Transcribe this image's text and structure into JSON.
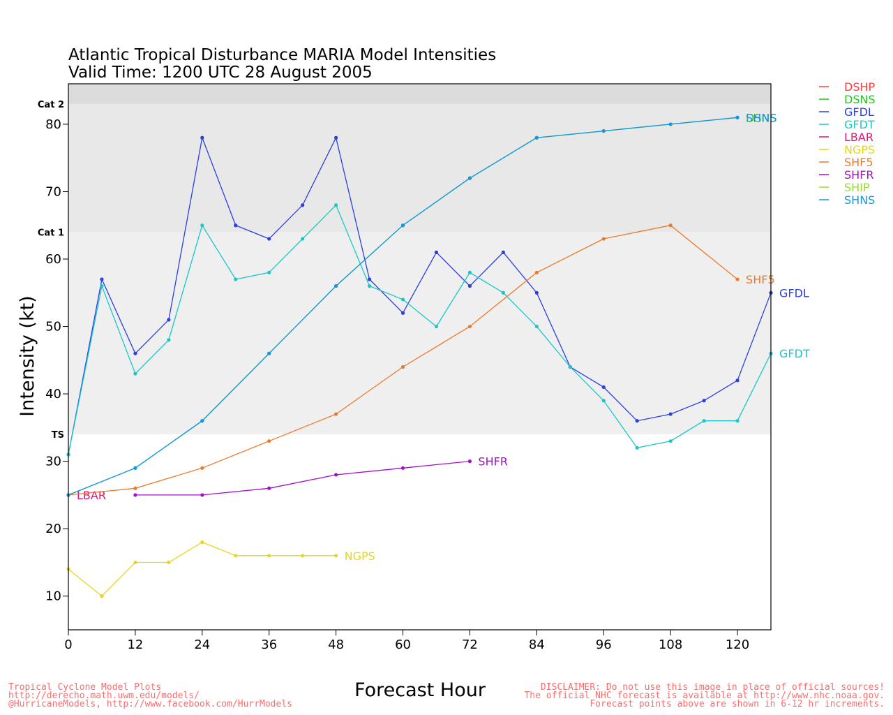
{
  "chart_data": {
    "type": "line",
    "title": "Atlantic Tropical Disturbance MARIA Model Intensities",
    "subtitle": "Valid Time: 1200 UTC 28 August 2005",
    "xlabel": "Forecast Hour",
    "ylabel": "Intensity (kt)",
    "xlim": [
      0,
      126
    ],
    "ylim": [
      5,
      86
    ],
    "x_ticks": [
      0,
      12,
      24,
      36,
      48,
      60,
      72,
      84,
      96,
      108,
      120
    ],
    "y_ticks": [
      10,
      20,
      30,
      40,
      50,
      60,
      70,
      80
    ],
    "bands": [
      {
        "label": "TS",
        "from": 34,
        "to": 64,
        "color": "#efefef"
      },
      {
        "label": "Cat 1",
        "from": 64,
        "to": 83,
        "color": "#e8e8e8"
      },
      {
        "label": "Cat 2",
        "from": 83,
        "to": 96,
        "color": "#dcdcdc"
      }
    ],
    "legend_position": "right, outside plot",
    "series": [
      {
        "name": "DSHP",
        "color": "#ff3a3a",
        "x": [],
        "y": [],
        "end_label": ""
      },
      {
        "name": "DSNS",
        "color": "#1ec81e",
        "x": [
          0,
          12,
          24,
          36,
          48,
          60,
          72,
          84,
          96,
          108,
          120
        ],
        "y": [
          25,
          29,
          36,
          46,
          56,
          65,
          72,
          78,
          79,
          80,
          81
        ],
        "end_label": "DSNS"
      },
      {
        "name": "GFDL",
        "color": "#2a3fe0",
        "x": [
          0,
          6,
          12,
          18,
          24,
          30,
          36,
          42,
          48,
          54,
          60,
          66,
          72,
          78,
          84,
          90,
          96,
          102,
          108,
          114,
          120,
          126
        ],
        "y": [
          31,
          57,
          46,
          51,
          78,
          65,
          63,
          68,
          78,
          57,
          52,
          61,
          56,
          61,
          55,
          44,
          41,
          36,
          37,
          39,
          42,
          55
        ],
        "end_label": "GFDL"
      },
      {
        "name": "GFDT",
        "color": "#18c8c8",
        "x": [
          0,
          6,
          12,
          18,
          24,
          30,
          36,
          42,
          48,
          54,
          60,
          66,
          72,
          78,
          84,
          90,
          96,
          102,
          108,
          114,
          120,
          126
        ],
        "y": [
          31,
          56,
          43,
          48,
          65,
          57,
          58,
          63,
          68,
          56,
          54,
          50,
          58,
          55,
          50,
          44,
          39,
          32,
          33,
          36,
          36,
          46
        ],
        "end_label": "GFDT"
      },
      {
        "name": "LBAR",
        "color": "#e0147a",
        "x": [
          0
        ],
        "y": [
          25
        ],
        "end_label": "LBAR"
      },
      {
        "name": "NGPS",
        "color": "#e6d620",
        "x": [
          0,
          6,
          12,
          18,
          24,
          30,
          36,
          42,
          48
        ],
        "y": [
          14,
          10,
          15,
          15,
          18,
          16,
          16,
          16,
          16
        ],
        "end_label": "NGPS"
      },
      {
        "name": "SHF5",
        "color": "#f0782a",
        "x": [
          0,
          12,
          24,
          36,
          48,
          60,
          72,
          84,
          96,
          108,
          120
        ],
        "y": [
          25,
          26,
          29,
          33,
          37,
          44,
          50,
          58,
          63,
          65,
          57
        ],
        "end_label": "SHF5"
      },
      {
        "name": "SHFR",
        "color": "#a010c8",
        "x": [
          12,
          24,
          36,
          48,
          60,
          72
        ],
        "y": [
          25,
          25,
          26,
          28,
          29,
          30
        ],
        "end_label": "SHFR"
      },
      {
        "name": "SHIP",
        "color": "#96dc28",
        "x": [],
        "y": [],
        "end_label": ""
      },
      {
        "name": "SHNS",
        "color": "#1496e6",
        "x": [
          0,
          12,
          24,
          36,
          48,
          60,
          72,
          84,
          96,
          108,
          120
        ],
        "y": [
          25,
          29,
          36,
          46,
          56,
          65,
          72,
          78,
          79,
          80,
          81
        ],
        "end_label": "SHNS"
      }
    ]
  },
  "footer": {
    "left_lines": [
      "Tropical Cyclone Model Plots",
      "http://derecho.math.uwm.edu/models/",
      "@HurricaneModels, http://www.facebook.com/HurrModels"
    ],
    "right_lines": [
      "DISCLAIMER: Do not use this image in place of official sources!",
      "The official NHC forecast is available at http://www.nhc.noaa.gov.",
      "Forecast points above are shown in 6-12 hr increments."
    ]
  }
}
